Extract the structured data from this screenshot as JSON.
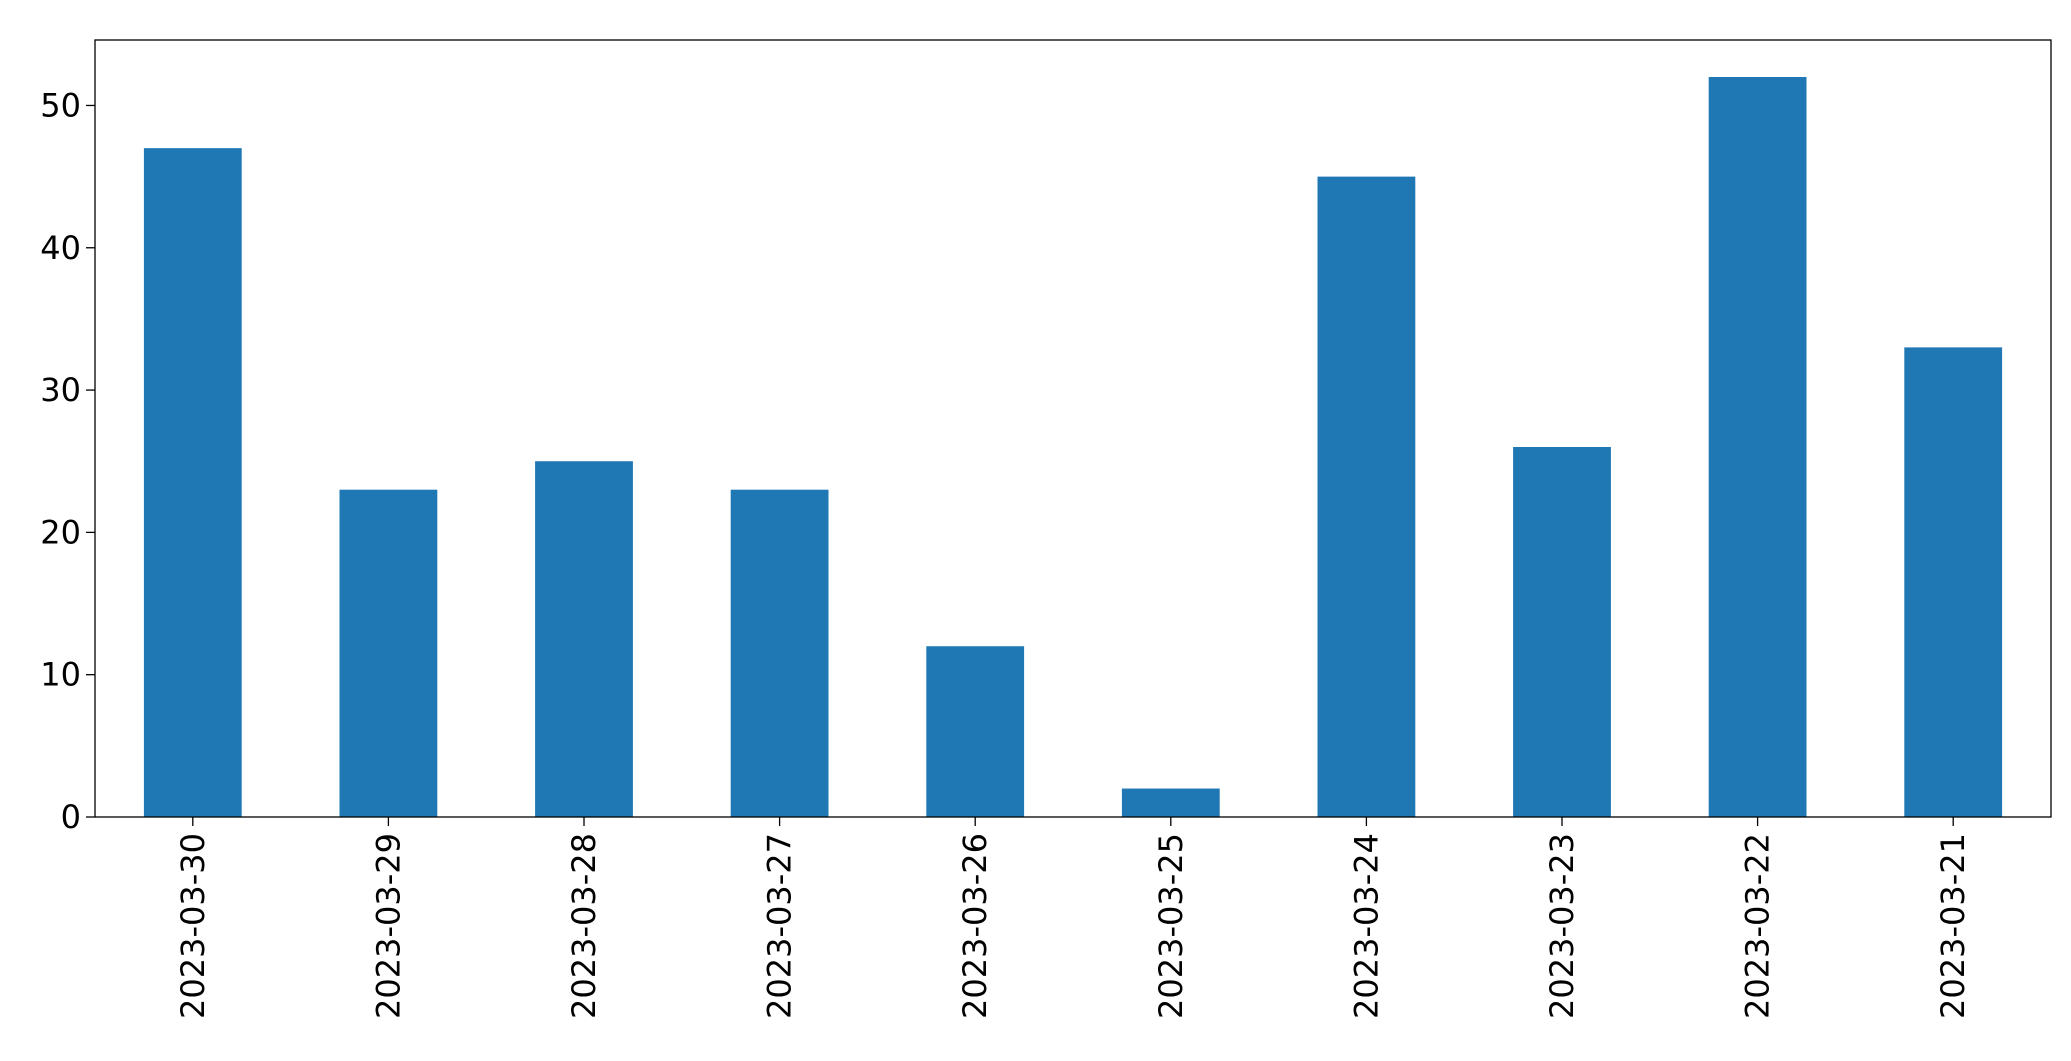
{
  "chart_data": {
    "type": "bar",
    "categories": [
      "2023-03-30",
      "2023-03-29",
      "2023-03-28",
      "2023-03-27",
      "2023-03-26",
      "2023-03-25",
      "2023-03-24",
      "2023-03-23",
      "2023-03-22",
      "2023-03-21"
    ],
    "values": [
      47,
      23,
      25,
      23,
      12,
      2,
      45,
      26,
      52,
      33
    ],
    "color": "#1f77b4",
    "ylim": [
      0,
      54.6
    ],
    "yticks": [
      0,
      10,
      20,
      30,
      40,
      50
    ],
    "grid": false
  }
}
